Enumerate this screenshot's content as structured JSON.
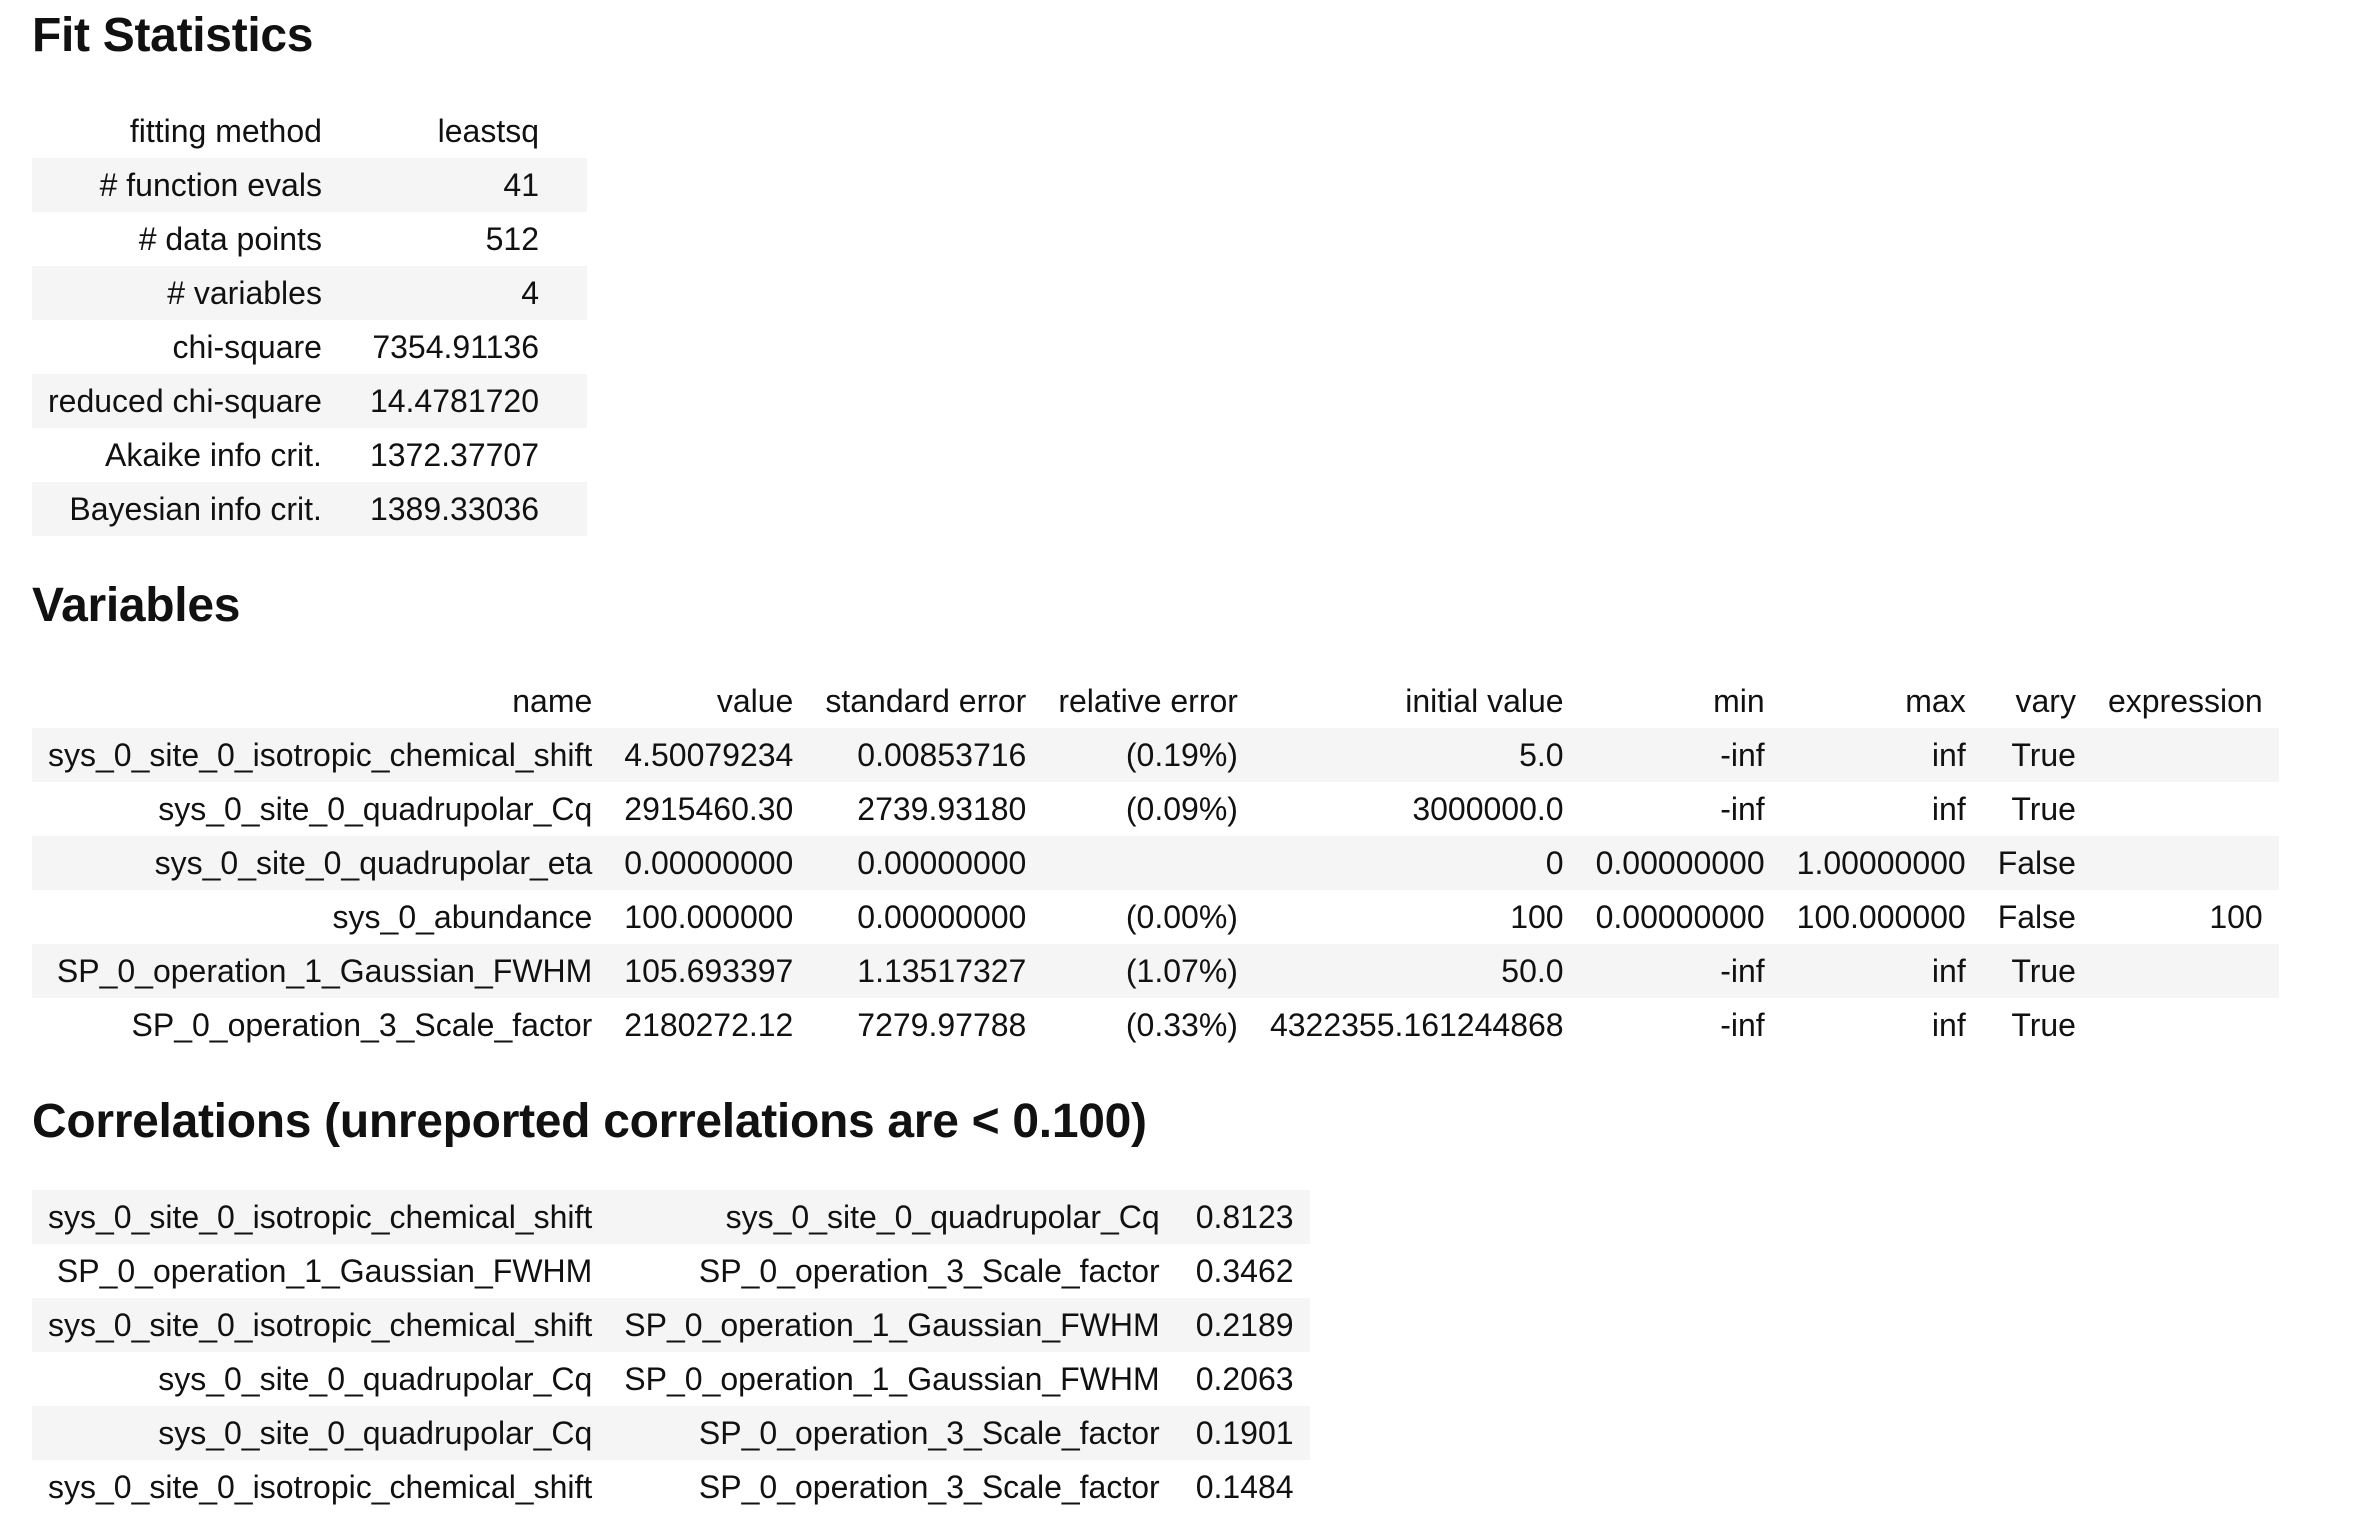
{
  "fit_statistics": {
    "title": "Fit Statistics",
    "rows": [
      {
        "label": "fitting method",
        "value": "leastsq"
      },
      {
        "label": "# function evals",
        "value": "41"
      },
      {
        "label": "# data points",
        "value": "512"
      },
      {
        "label": "# variables",
        "value": "4"
      },
      {
        "label": "chi-square",
        "value": "7354.91136"
      },
      {
        "label": "reduced chi-square",
        "value": "14.4781720"
      },
      {
        "label": "Akaike info crit.",
        "value": "1372.37707"
      },
      {
        "label": "Bayesian info crit.",
        "value": "1389.33036"
      }
    ]
  },
  "variables": {
    "title": "Variables",
    "headers": [
      "name",
      "value",
      "standard error",
      "relative error",
      "initial value",
      "min",
      "max",
      "vary",
      "expression"
    ],
    "rows": [
      [
        "sys_0_site_0_isotropic_chemical_shift",
        "4.50079234",
        "0.00853716",
        "(0.19%)",
        "5.0",
        "-inf",
        "inf",
        "True",
        ""
      ],
      [
        "sys_0_site_0_quadrupolar_Cq",
        "2915460.30",
        "2739.93180",
        "(0.09%)",
        "3000000.0",
        "-inf",
        "inf",
        "True",
        ""
      ],
      [
        "sys_0_site_0_quadrupolar_eta",
        "0.00000000",
        "0.00000000",
        "",
        "0",
        "0.00000000",
        "1.00000000",
        "False",
        ""
      ],
      [
        "sys_0_abundance",
        "100.000000",
        "0.00000000",
        "(0.00%)",
        "100",
        "0.00000000",
        "100.000000",
        "False",
        "100"
      ],
      [
        "SP_0_operation_1_Gaussian_FWHM",
        "105.693397",
        "1.13517327",
        "(1.07%)",
        "50.0",
        "-inf",
        "inf",
        "True",
        ""
      ],
      [
        "SP_0_operation_3_Scale_factor",
        "2180272.12",
        "7279.97788",
        "(0.33%)",
        "4322355.161244868",
        "-inf",
        "inf",
        "True",
        ""
      ]
    ]
  },
  "correlations": {
    "title": "Correlations (unreported correlations are < 0.100)",
    "rows": [
      [
        "sys_0_site_0_isotropic_chemical_shift",
        "sys_0_site_0_quadrupolar_Cq",
        "0.8123"
      ],
      [
        "SP_0_operation_1_Gaussian_FWHM",
        "SP_0_operation_3_Scale_factor",
        "0.3462"
      ],
      [
        "sys_0_site_0_isotropic_chemical_shift",
        "SP_0_operation_1_Gaussian_FWHM",
        "0.2189"
      ],
      [
        "sys_0_site_0_quadrupolar_Cq",
        "SP_0_operation_1_Gaussian_FWHM",
        "0.2063"
      ],
      [
        "sys_0_site_0_quadrupolar_Cq",
        "SP_0_operation_3_Scale_factor",
        "0.1901"
      ],
      [
        "sys_0_site_0_isotropic_chemical_shift",
        "SP_0_operation_3_Scale_factor",
        "0.1484"
      ]
    ]
  }
}
